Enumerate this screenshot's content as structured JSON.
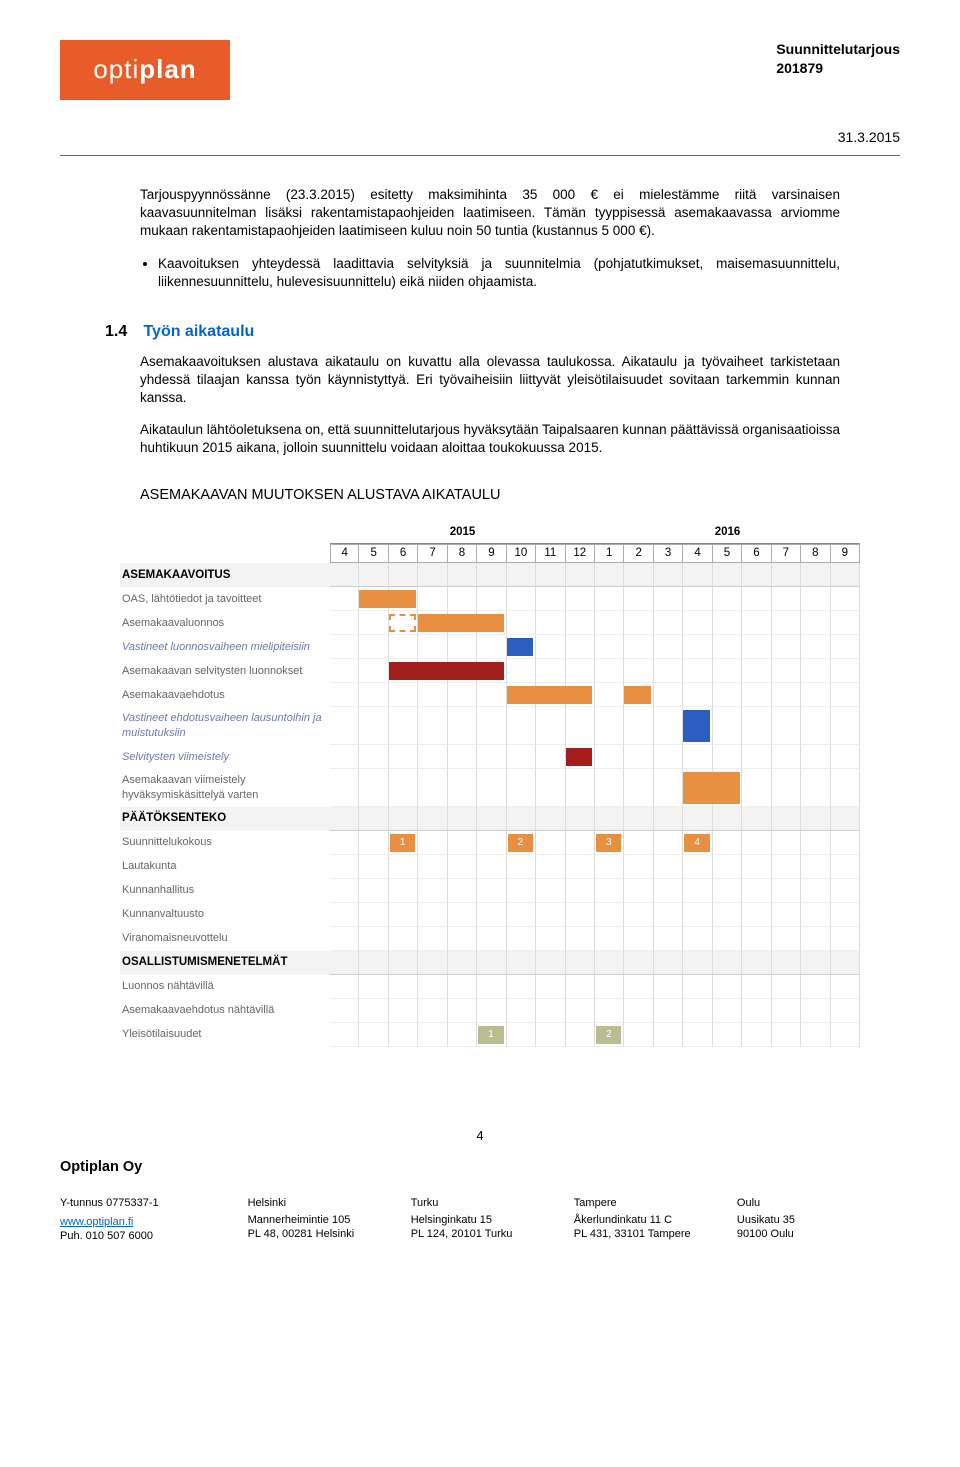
{
  "header": {
    "logo_text_light": "opti",
    "logo_text_bold": "plan",
    "doc_title": "Suunnittelutarjous",
    "doc_number": "201879",
    "date": "31.3.2015"
  },
  "body": {
    "p1": "Tarjouspyynnössänne (23.3.2015) esitetty maksimihinta 35 000 € ei mielestämme riitä varsinaisen kaavasuunnitelman lisäksi rakentamistapaohjeiden laatimiseen. Tämän tyyppisessä asemakaavassa arviomme mukaan rakentamistapaohjeiden laatimiseen kuluu noin 50 tuntia (kustannus 5 000 €).",
    "bullet1": "Kaavoituksen yhteydessä laadittavia selvityksiä ja suunnitelmia (pohjatutkimukset, maisemasuunnittelu, liikennesuunnittelu, hulevesisuunnittelu) eikä niiden ohjaamista."
  },
  "section": {
    "num": "1.4",
    "title": "Työn aikataulu",
    "p1": "Asemakaavoituksen alustava aikataulu on kuvattu alla olevassa taulukossa. Aikataulu ja työvaiheet tarkistetaan yhdessä tilaajan kanssa työn käynnistyttyä. Eri työvaiheisiin liittyvät yleisötilaisuudet sovitaan tarkemmin kunnan kanssa.",
    "p2": "Aikataulun lähtöoletuksena on, että suunnittelutarjous hyväksytään Taipalsaaren kunnan päättävissä organisaatioissa huhtikuun 2015 aikana, jolloin suunnittelu voidaan aloittaa toukokuussa 2015."
  },
  "gantt_title": "ASEMAKAAVAN MUUTOKSEN ALUSTAVA AIKATAULU",
  "gantt": {
    "years": [
      {
        "label": "2015",
        "span": 9
      },
      {
        "label": "2016",
        "span": 9
      }
    ],
    "months": [
      "4",
      "5",
      "6",
      "7",
      "8",
      "9",
      "10",
      "11",
      "12",
      "1",
      "2",
      "3",
      "4",
      "5",
      "6",
      "7",
      "8",
      "9"
    ],
    "colors": {
      "orange": "#e98f42",
      "orange_dashed": "#e98f42",
      "darkred": "#a31d1d",
      "blue": "#2b5fbf",
      "olive": "#b9bd8f",
      "grey_bg": "#f3f3f3"
    },
    "sections": [
      {
        "title": "ASEMAKAAVOITUS",
        "rows": [
          {
            "label": "OAS, lähtötiedot ja tavoitteet",
            "bars": [
              {
                "col": 1,
                "span": 2,
                "color": "#e98f42"
              }
            ]
          },
          {
            "label": "Asemakaavaluonnos",
            "bars": [
              {
                "col": 2,
                "span": 1,
                "color": "#e98f42",
                "style": "dashed"
              },
              {
                "col": 3,
                "span": 3,
                "color": "#e98f42"
              }
            ]
          },
          {
            "label": "Vastineet luonnosvaiheen mielipiteisiin",
            "italic": true,
            "bars": [
              {
                "col": 6,
                "span": 1,
                "color": "#2b5fbf"
              }
            ]
          },
          {
            "label": "Asemakaavan selvitysten luonnokset",
            "bars": [
              {
                "col": 2,
                "span": 4,
                "color": "#a31d1d"
              }
            ]
          },
          {
            "label": "Asemakaavaehdotus",
            "bars": [
              {
                "col": 6,
                "span": 3,
                "color": "#e98f42"
              },
              {
                "col": 10,
                "span": 1,
                "color": "#e98f42"
              }
            ]
          },
          {
            "label": "Vastineet ehdotusvaiheen lausuntoihin ja muistutuksiin",
            "italic": true,
            "bars": [
              {
                "col": 12,
                "span": 1,
                "color": "#2b5fbf"
              }
            ]
          },
          {
            "label": "Selvitysten viimeistely",
            "italic": true,
            "bars": [
              {
                "col": 8,
                "span": 1,
                "color": "#a31d1d"
              }
            ]
          },
          {
            "label": "Asemakaavan viimeistely hyväksymiskäsittelyä varten",
            "bars": [
              {
                "col": 12,
                "span": 2,
                "color": "#e98f42"
              }
            ]
          }
        ]
      },
      {
        "title": "PÄÄTÖKSENTEKO",
        "rows": [
          {
            "label": "Suunnittelukokous",
            "numboxes": [
              {
                "col": 2,
                "n": "1",
                "color": "#e98f42"
              },
              {
                "col": 6,
                "n": "2",
                "color": "#e98f42"
              },
              {
                "col": 9,
                "n": "3",
                "color": "#e98f42"
              },
              {
                "col": 12,
                "n": "4",
                "color": "#e98f42"
              }
            ]
          },
          {
            "label": "Lautakunta"
          },
          {
            "label": "Kunnanhallitus"
          },
          {
            "label": "Kunnanvaltuusto"
          },
          {
            "label": "Viranomaisneuvottelu"
          }
        ]
      },
      {
        "title": "OSALLISTUMISMENETELMÄT",
        "rows": [
          {
            "label": "Luonnos nähtävillä"
          },
          {
            "label": "Asemakaavaehdotus nähtävillä"
          },
          {
            "label": "Yleisötilaisuudet",
            "numboxes": [
              {
                "col": 5,
                "n": "1",
                "color": "#b9bd8f"
              },
              {
                "col": 9,
                "n": "2",
                "color": "#b9bd8f"
              }
            ]
          }
        ]
      }
    ]
  },
  "footer": {
    "page_num": "4",
    "company": "Optiplan Oy",
    "ytunnus": "Y-tunnus 0775337-1",
    "website": "www.optiplan.fi",
    "phone": "Puh. 010 507 6000",
    "offices": [
      {
        "city": "Helsinki",
        "addr1": "Mannerheimintie 105",
        "addr2": "PL 48, 00281 Helsinki"
      },
      {
        "city": "Turku",
        "addr1": "Helsinginkatu 15",
        "addr2": "PL 124, 20101 Turku"
      },
      {
        "city": "Tampere",
        "addr1": "Åkerlundinkatu 11 C",
        "addr2": "PL 431, 33101 Tampere"
      },
      {
        "city": "Oulu",
        "addr1": "Uusikatu 35",
        "addr2": "90100 Oulu"
      }
    ]
  }
}
